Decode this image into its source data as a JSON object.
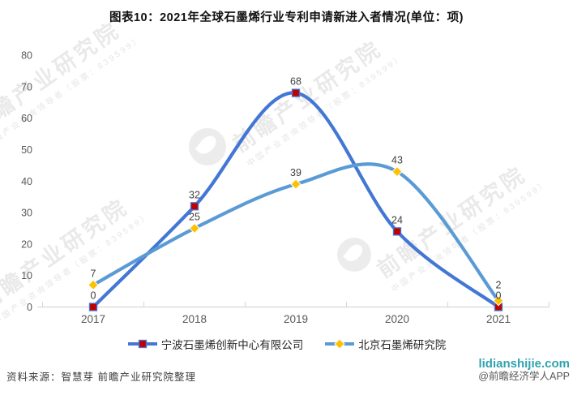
{
  "title": "图表10：2021年全球石墨烯行业专利申请新进入者情况(单位：项)",
  "chart_data": {
    "type": "line",
    "smooth": true,
    "categories": [
      "2017",
      "2018",
      "2019",
      "2020",
      "2021"
    ],
    "series": [
      {
        "name": "宁波石墨烯创新中心有限公司",
        "values": [
          0,
          32,
          68,
          24,
          0
        ],
        "line_color": "#4377D4",
        "marker": "square",
        "marker_color": "#C00000"
      },
      {
        "name": "北京石墨烯研究院",
        "values": [
          7,
          25,
          39,
          43,
          2
        ],
        "line_color": "#5B9BD5",
        "marker": "diamond",
        "marker_color": "#FFC000"
      }
    ],
    "ylim": [
      0,
      80
    ],
    "yticks": [
      0,
      10,
      20,
      30,
      40,
      50,
      60,
      70,
      80
    ],
    "grid": false,
    "data_labels": true,
    "legend_position": "bottom",
    "axis_color": "#D9D9D9",
    "tick_label_color": "#595959",
    "data_label_color": "#404040"
  },
  "watermark": {
    "brand": "前瞻产业研究院",
    "sub": "中国产业咨询领导者（股票：839599）"
  },
  "footer": {
    "source": "资料来源：智慧芽 前瞻产业研究院整理",
    "site": "lidianshijie.com",
    "credit": "@前瞻经济学人APP"
  }
}
